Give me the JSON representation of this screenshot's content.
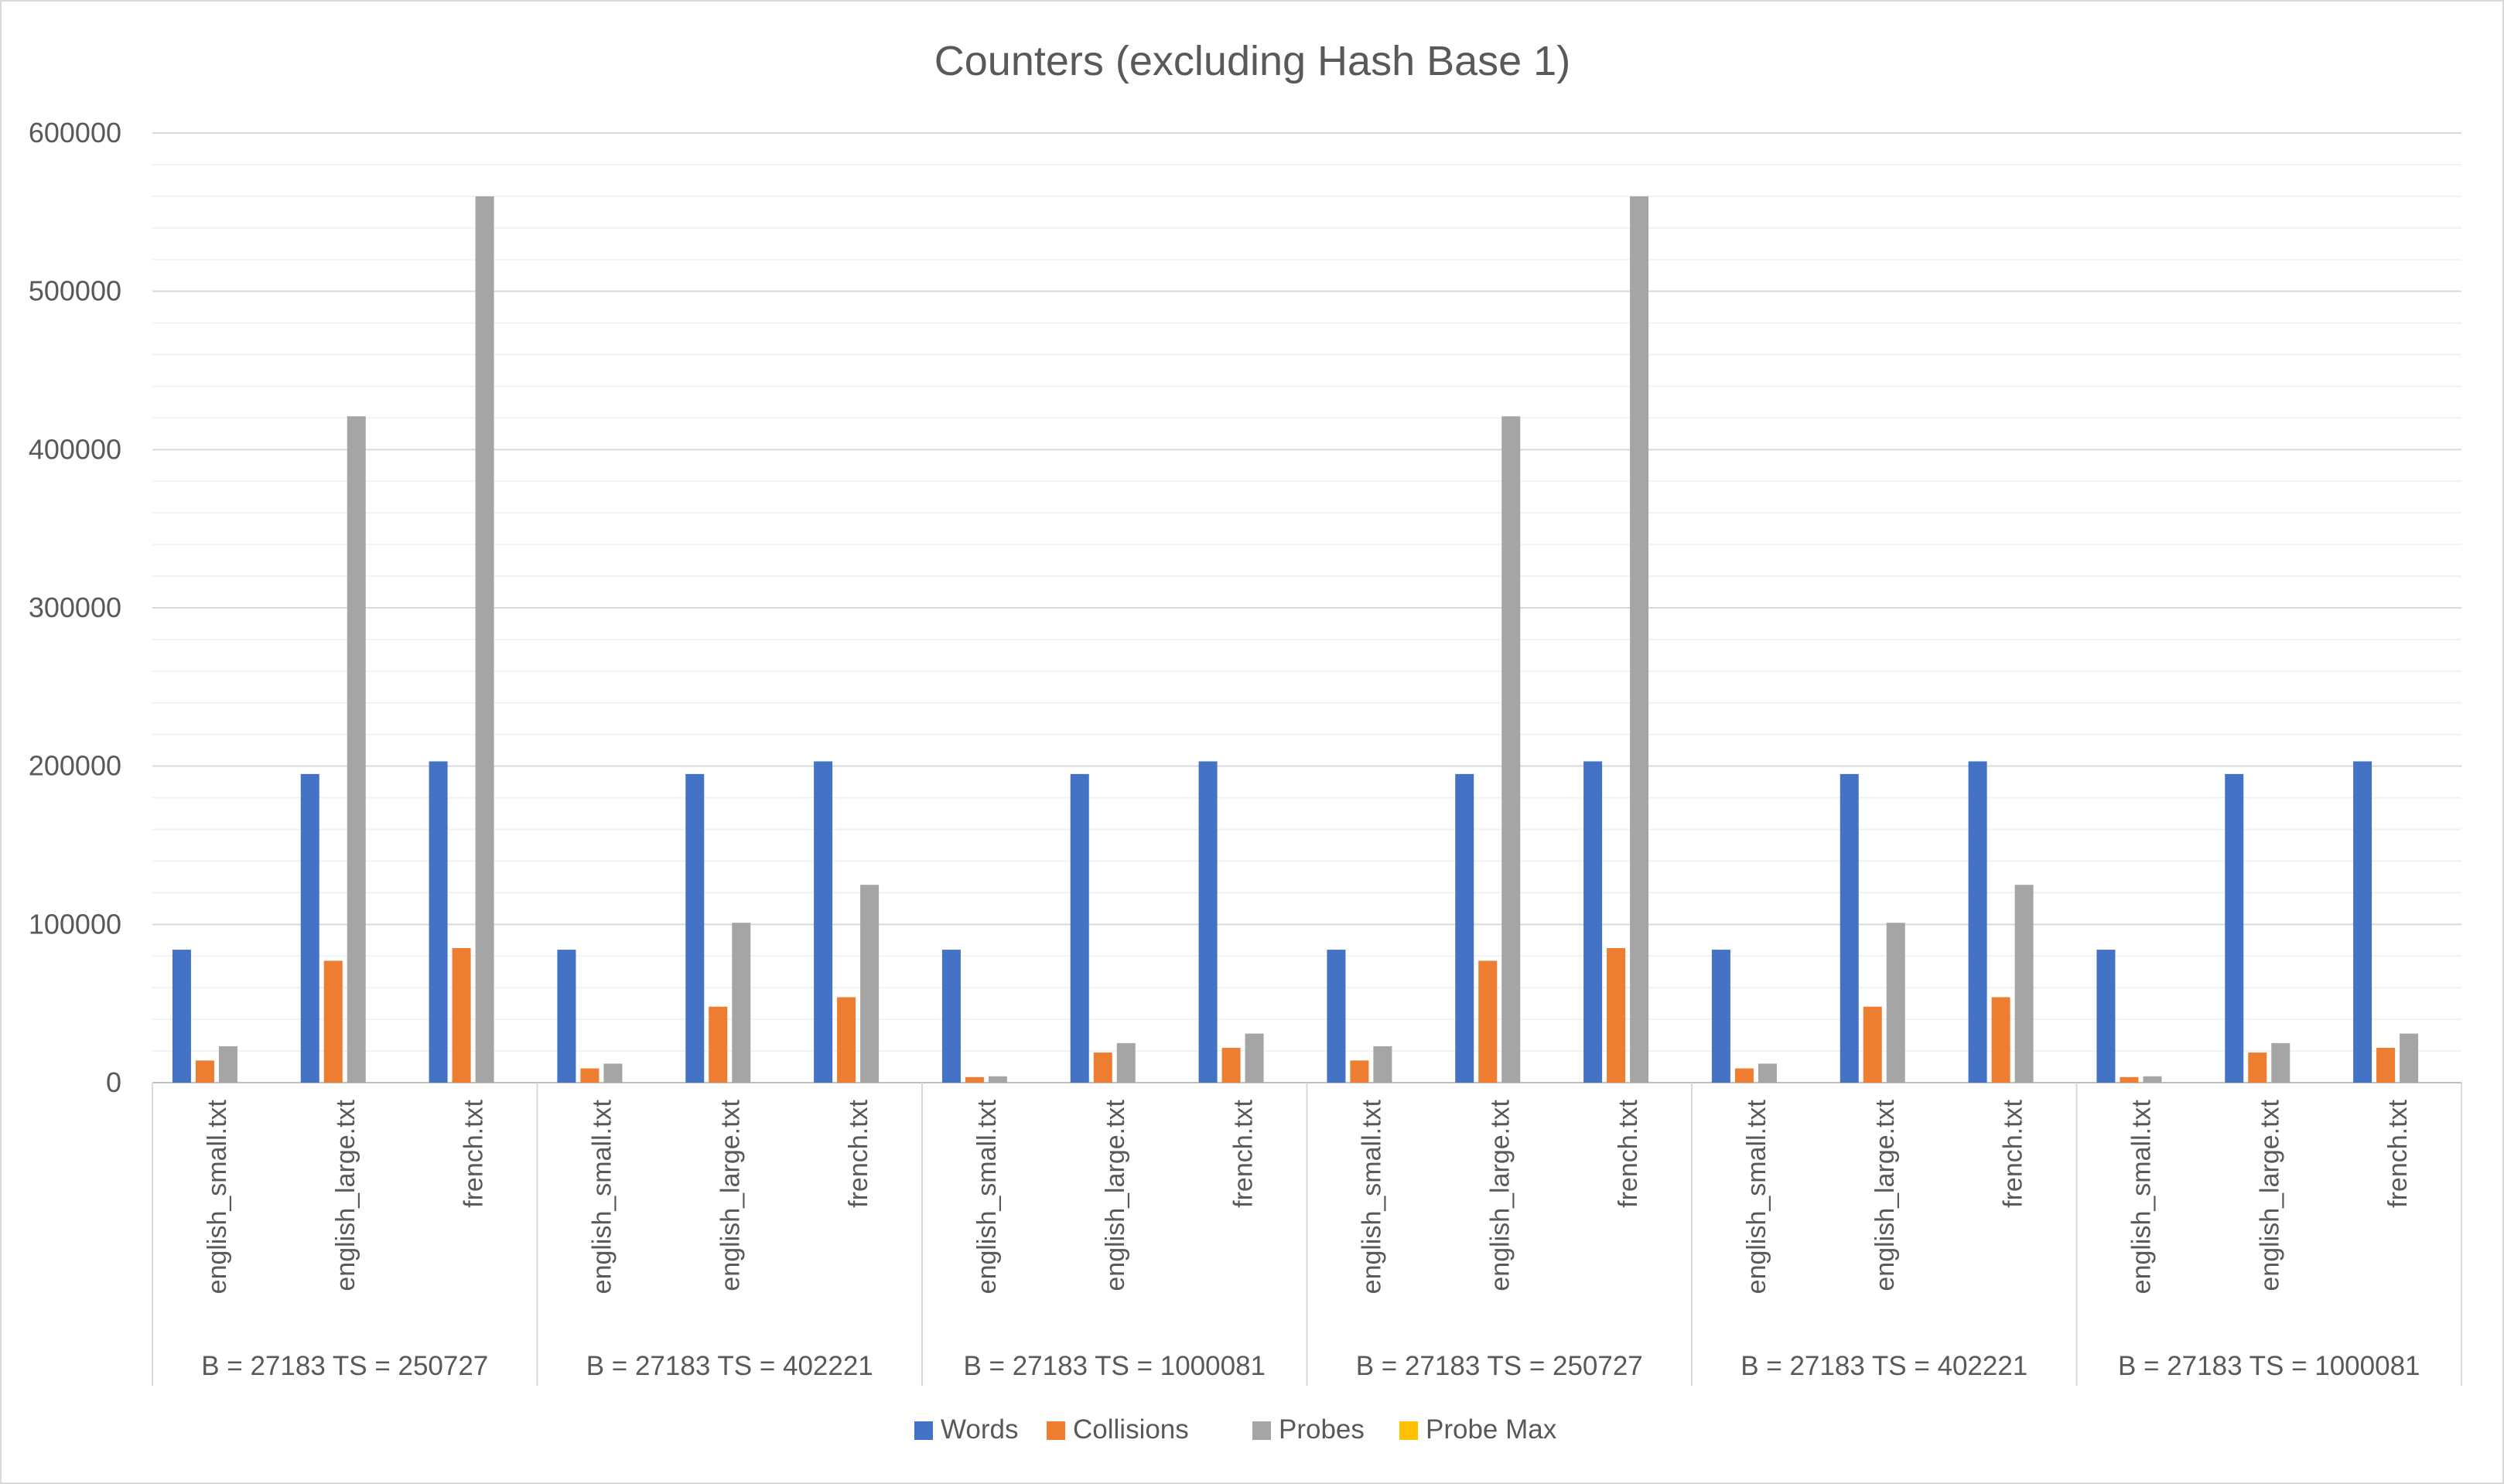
{
  "chart_data": {
    "type": "bar",
    "title": "Counters (excluding Hash Base 1)",
    "xlabel": "",
    "ylabel": "",
    "ylim": [
      0,
      600000
    ],
    "yticks": [
      0,
      100000,
      200000,
      300000,
      400000,
      500000,
      600000
    ],
    "ytick_labels": [
      "0",
      "100000",
      "200000",
      "300000",
      "400000",
      "500000",
      "600000"
    ],
    "grid": true,
    "legend_position": "bottom",
    "groups": [
      "B = 27183 TS = 250727",
      "B = 27183 TS = 402221",
      "B = 27183 TS = 1000081",
      "B = 27183 TS = 250727",
      "B = 27183 TS = 402221",
      "B = 27183 TS = 1000081"
    ],
    "categories": [
      "english_small.txt",
      "english_large.txt",
      "french.txt",
      "english_small.txt",
      "english_large.txt",
      "french.txt",
      "english_small.txt",
      "english_large.txt",
      "french.txt",
      "english_small.txt",
      "english_large.txt",
      "french.txt",
      "english_small.txt",
      "english_large.txt",
      "french.txt",
      "english_small.txt",
      "english_large.txt",
      "french.txt"
    ],
    "series": [
      {
        "name": "Words",
        "color": "#4472c4",
        "values": [
          84000,
          195000,
          203000,
          84000,
          195000,
          203000,
          84000,
          195000,
          203000,
          84000,
          195000,
          203000,
          84000,
          195000,
          203000,
          84000,
          195000,
          203000
        ]
      },
      {
        "name": "Collisions",
        "color": "#ed7d31",
        "values": [
          14000,
          77000,
          85000,
          9000,
          48000,
          54000,
          3500,
          19000,
          22000,
          14000,
          77000,
          85000,
          9000,
          48000,
          54000,
          3500,
          19000,
          22000
        ]
      },
      {
        "name": "Probes",
        "color": "#a5a5a5",
        "values": [
          23000,
          421000,
          560000,
          12000,
          101000,
          125000,
          4000,
          25000,
          31000,
          23000,
          421000,
          560000,
          12000,
          101000,
          125000,
          4000,
          25000,
          31000
        ]
      },
      {
        "name": "Probe Max",
        "color": "#ffc000",
        "values": [
          0,
          0,
          0,
          0,
          0,
          0,
          0,
          0,
          0,
          0,
          0,
          0,
          0,
          0,
          0,
          0,
          0,
          0
        ]
      }
    ]
  }
}
